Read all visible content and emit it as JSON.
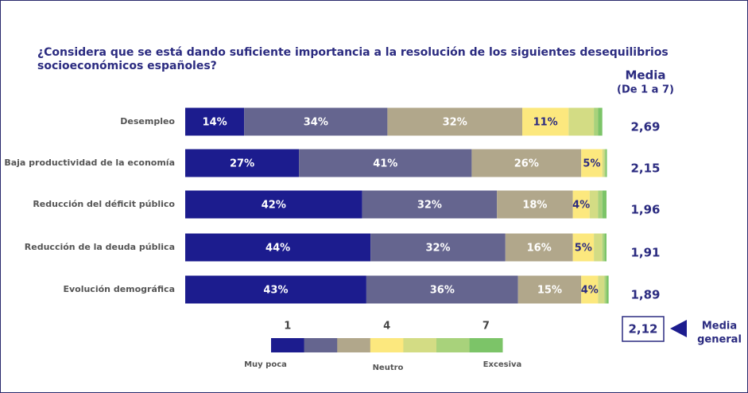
{
  "chart_data": {
    "type": "stacked-bar-horizontal",
    "title_lines": [
      "¿Considera que se está dando suficiente importancia a la resolución de los siguientes desequilibrios",
      "socioeconómicos españoles?"
    ],
    "categories": [
      "Desempleo",
      "Baja productividad de la economía",
      "Reducción del déficit público",
      "Reducción de la deuda pública",
      "Evolución demográfica"
    ],
    "xlim": [
      0,
      100
    ],
    "series": [
      {
        "color": "#1c1c8e",
        "values": [
          14,
          27,
          42,
          44,
          43
        ],
        "value_labels": [
          "14%",
          "27%",
          "42%",
          "44%",
          "43%"
        ]
      },
      {
        "color": "#65658f",
        "values": [
          34,
          41,
          32,
          32,
          36
        ],
        "value_labels": [
          "34%",
          "41%",
          "32%",
          "32%",
          "36%"
        ]
      },
      {
        "color": "#b1a78b",
        "values": [
          32,
          26,
          18,
          16,
          15
        ],
        "value_labels": [
          "32%",
          "26%",
          "18%",
          "16%",
          "15%"
        ]
      },
      {
        "color": "#fce87e",
        "values": [
          11,
          5,
          4,
          5,
          4
        ],
        "value_labels": [
          "11%",
          "5%",
          "4%",
          "5%",
          "4%"
        ]
      },
      {
        "color": "#d3dc84",
        "values": [
          6,
          0.5,
          2,
          2,
          1.5
        ],
        "value_labels": [
          null,
          null,
          null,
          null,
          null
        ]
      },
      {
        "color": "#a8d27b",
        "values": [
          1,
          0.3,
          1,
          0.5,
          0.5
        ],
        "value_labels": [
          null,
          null,
          null,
          null,
          null
        ]
      },
      {
        "color": "#7cc468",
        "values": [
          1,
          0.3,
          1,
          0.5,
          0.5
        ],
        "value_labels": [
          null,
          null,
          null,
          null,
          null
        ]
      }
    ],
    "mean_header": [
      "Media",
      "(De 1 a 7)"
    ],
    "means": [
      {
        "value": 2.69,
        "label": "2,69"
      },
      {
        "value": 2.15,
        "label": "2,15"
      },
      {
        "value": 1.96,
        "label": "1,96"
      },
      {
        "value": 1.91,
        "label": "1,91"
      },
      {
        "value": 1.89,
        "label": "1,89"
      }
    ],
    "overall_mean": {
      "value": 2.12,
      "label": "2,12"
    },
    "overall_mean_label": [
      "Media",
      "general"
    ],
    "legend_ticks": [
      {
        "value": 1,
        "label": "1"
      },
      {
        "value": 4,
        "label": "4"
      },
      {
        "value": 7,
        "label": "7"
      }
    ],
    "legend_anchors": [
      "Muy poca",
      "Neutro",
      "Excesiva"
    ]
  }
}
